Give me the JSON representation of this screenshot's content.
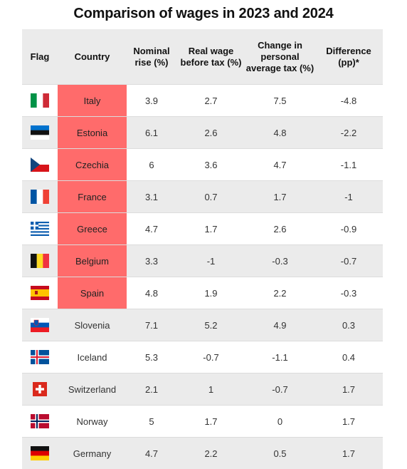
{
  "chart_data": {
    "type": "table",
    "title": "Comparison of wages in 2023 and 2024",
    "columns": [
      "Flag",
      "Country",
      "Nominal rise (%)",
      "Real wage before tax (%)",
      "Change in personal average tax (%)",
      "Difference (pp)*"
    ],
    "header_lines": [
      [
        "Flag"
      ],
      [
        "Country"
      ],
      [
        "Nominal",
        "rise (%)"
      ],
      [
        "Real wage",
        "before tax (%)"
      ],
      [
        "Change in",
        "personal",
        "average tax (%)"
      ],
      [
        "Difference",
        "(pp)*"
      ]
    ],
    "highlight_color": "#ff6b6b",
    "rows": [
      {
        "flag": "italy-flag-icon",
        "country": "Italy",
        "nominal": "3.9",
        "real": "2.7",
        "tax": "7.5",
        "diff": "-4.8",
        "highlight": true
      },
      {
        "flag": "estonia-flag-icon",
        "country": "Estonia",
        "nominal": "6.1",
        "real": "2.6",
        "tax": "4.8",
        "diff": "-2.2",
        "highlight": true
      },
      {
        "flag": "czechia-flag-icon",
        "country": "Czechia",
        "nominal": "6",
        "real": "3.6",
        "tax": "4.7",
        "diff": "-1.1",
        "highlight": true
      },
      {
        "flag": "france-flag-icon",
        "country": "France",
        "nominal": "3.1",
        "real": "0.7",
        "tax": "1.7",
        "diff": "-1",
        "highlight": true
      },
      {
        "flag": "greece-flag-icon",
        "country": "Greece",
        "nominal": "4.7",
        "real": "1.7",
        "tax": "2.6",
        "diff": "-0.9",
        "highlight": true
      },
      {
        "flag": "belgium-flag-icon",
        "country": "Belgium",
        "nominal": "3.3",
        "real": "-1",
        "tax": "-0.3",
        "diff": "-0.7",
        "highlight": true
      },
      {
        "flag": "spain-flag-icon",
        "country": "Spain",
        "nominal": "4.8",
        "real": "1.9",
        "tax": "2.2",
        "diff": "-0.3",
        "highlight": true
      },
      {
        "flag": "slovenia-flag-icon",
        "country": "Slovenia",
        "nominal": "7.1",
        "real": "5.2",
        "tax": "4.9",
        "diff": "0.3",
        "highlight": false
      },
      {
        "flag": "iceland-flag-icon",
        "country": "Iceland",
        "nominal": "5.3",
        "real": "-0.7",
        "tax": "-1.1",
        "diff": "0.4",
        "highlight": false
      },
      {
        "flag": "switzerland-flag-icon",
        "country": "Switzerland",
        "nominal": "2.1",
        "real": "1",
        "tax": "-0.7",
        "diff": "1.7",
        "highlight": false
      },
      {
        "flag": "norway-flag-icon",
        "country": "Norway",
        "nominal": "5",
        "real": "1.7",
        "tax": "0",
        "diff": "1.7",
        "highlight": false
      },
      {
        "flag": "germany-flag-icon",
        "country": "Germany",
        "nominal": "4.7",
        "real": "2.2",
        "tax": "0.5",
        "diff": "1.7",
        "highlight": false
      }
    ]
  }
}
